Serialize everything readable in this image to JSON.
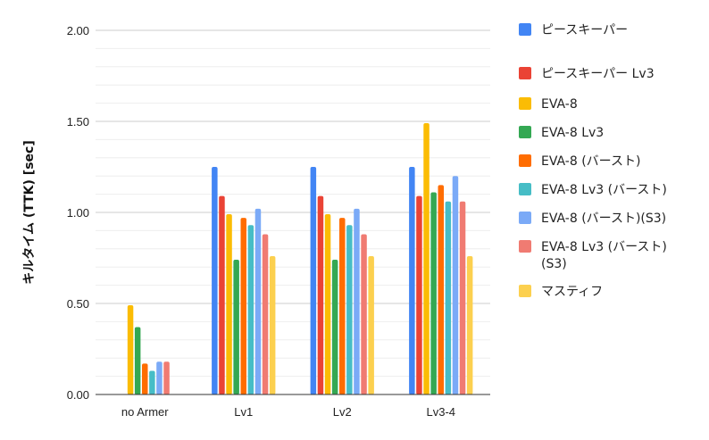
{
  "chart_data": {
    "type": "bar",
    "title": "",
    "xlabel": "",
    "ylabel": "キルタイム (TTK) [sec]",
    "ylim": [
      0,
      2.0
    ],
    "yticks": [
      "0.00",
      "0.50",
      "1.00",
      "1.50",
      "2.00"
    ],
    "grid": true,
    "legend_position": "right",
    "categories": [
      "no Armer",
      "Lv1",
      "Lv2",
      "Lv3-4"
    ],
    "series": [
      {
        "name": "ピースキーパー",
        "color": "#4285F4",
        "values": [
          null,
          1.25,
          1.25,
          1.25
        ]
      },
      {
        "name": "ピースキーパー Lv3",
        "color": "#EA4335",
        "values": [
          null,
          1.09,
          1.09,
          1.09
        ]
      },
      {
        "name": "EVA-8",
        "color": "#FBBC04",
        "values": [
          0.49,
          0.99,
          0.99,
          1.49
        ]
      },
      {
        "name": "EVA-8 Lv3",
        "color": "#34A853",
        "values": [
          0.37,
          0.74,
          0.74,
          1.11
        ]
      },
      {
        "name": "EVA-8 (バースト)",
        "color": "#FF6D01",
        "values": [
          0.17,
          0.97,
          0.97,
          1.15
        ]
      },
      {
        "name": "EVA-8 Lv3 (バースト)",
        "color": "#46BDC6",
        "values": [
          0.13,
          0.93,
          0.93,
          1.06
        ]
      },
      {
        "name": "EVA-8 (バースト)(S3)",
        "color": "#7BAAF7",
        "values": [
          0.18,
          1.02,
          1.02,
          1.2
        ]
      },
      {
        "name": "EVA-8 Lv3 (バースト) (S3)",
        "color": "#F07B72",
        "values": [
          0.18,
          0.88,
          0.88,
          1.06
        ]
      },
      {
        "name": "マスティフ",
        "color": "#FCD04F",
        "values": [
          null,
          0.76,
          0.76,
          0.76
        ]
      }
    ]
  }
}
